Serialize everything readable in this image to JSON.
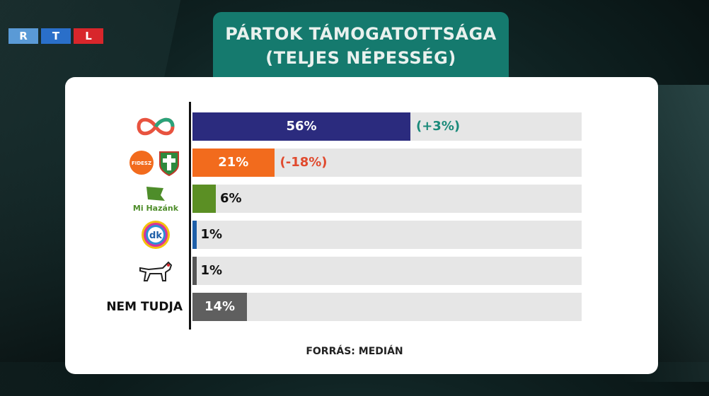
{
  "broadcaster": {
    "logo_letters": [
      "R",
      "T",
      "L"
    ],
    "colors": [
      "#5a9ad6",
      "#2a6fc9",
      "#d8262b"
    ]
  },
  "header": {
    "line1": "PÁRTOK TÁMOGATOTTSÁGA",
    "line2": "(TELJES NÉPESSÉG)",
    "bg": "#157a6e"
  },
  "source": "FORRÁS: MEDIÁN",
  "chart_data": {
    "type": "bar",
    "orientation": "horizontal",
    "title": "PÁRTOK TÁMOGATOTTSÁGA (TELJES NÉPESSÉG)",
    "xlim": [
      0,
      100
    ],
    "categories": [
      {
        "icon": "tisza-logo",
        "label": "",
        "logo_text": "",
        "value": 56,
        "value_label": "56%",
        "change": "(+3%)",
        "color": "#2b2b7e",
        "change_color": "#1a8a7a",
        "value_inside": true
      },
      {
        "icon": "fidesz-kdnp-logo",
        "label": "",
        "logo_text": "FIDESZ",
        "value": 21,
        "value_label": "21%",
        "change": "(-18%)",
        "color": "#f26b1d",
        "change_color": "#e04a2e",
        "value_inside": true
      },
      {
        "icon": "mi-hazank-logo",
        "label": "",
        "logo_text": "Mi Hazánk",
        "value": 6,
        "value_label": "6%",
        "change": "",
        "color": "#5b8f24",
        "change_color": "",
        "value_inside": false
      },
      {
        "icon": "dk-logo",
        "label": "",
        "logo_text": "dk",
        "value": 1,
        "value_label": "1%",
        "change": "",
        "color": "#1f5fa8",
        "change_color": "",
        "value_inside": false
      },
      {
        "icon": "mkkp-dog-logo",
        "label": "",
        "logo_text": "",
        "value": 1,
        "value_label": "1%",
        "change": "",
        "color": "#555555",
        "change_color": "",
        "value_inside": false
      },
      {
        "icon": "",
        "label": "NEM TUDJA",
        "logo_text": "",
        "value": 14,
        "value_label": "14%",
        "change": "",
        "color": "#5f5f5f",
        "change_color": "",
        "value_inside": true
      }
    ]
  }
}
